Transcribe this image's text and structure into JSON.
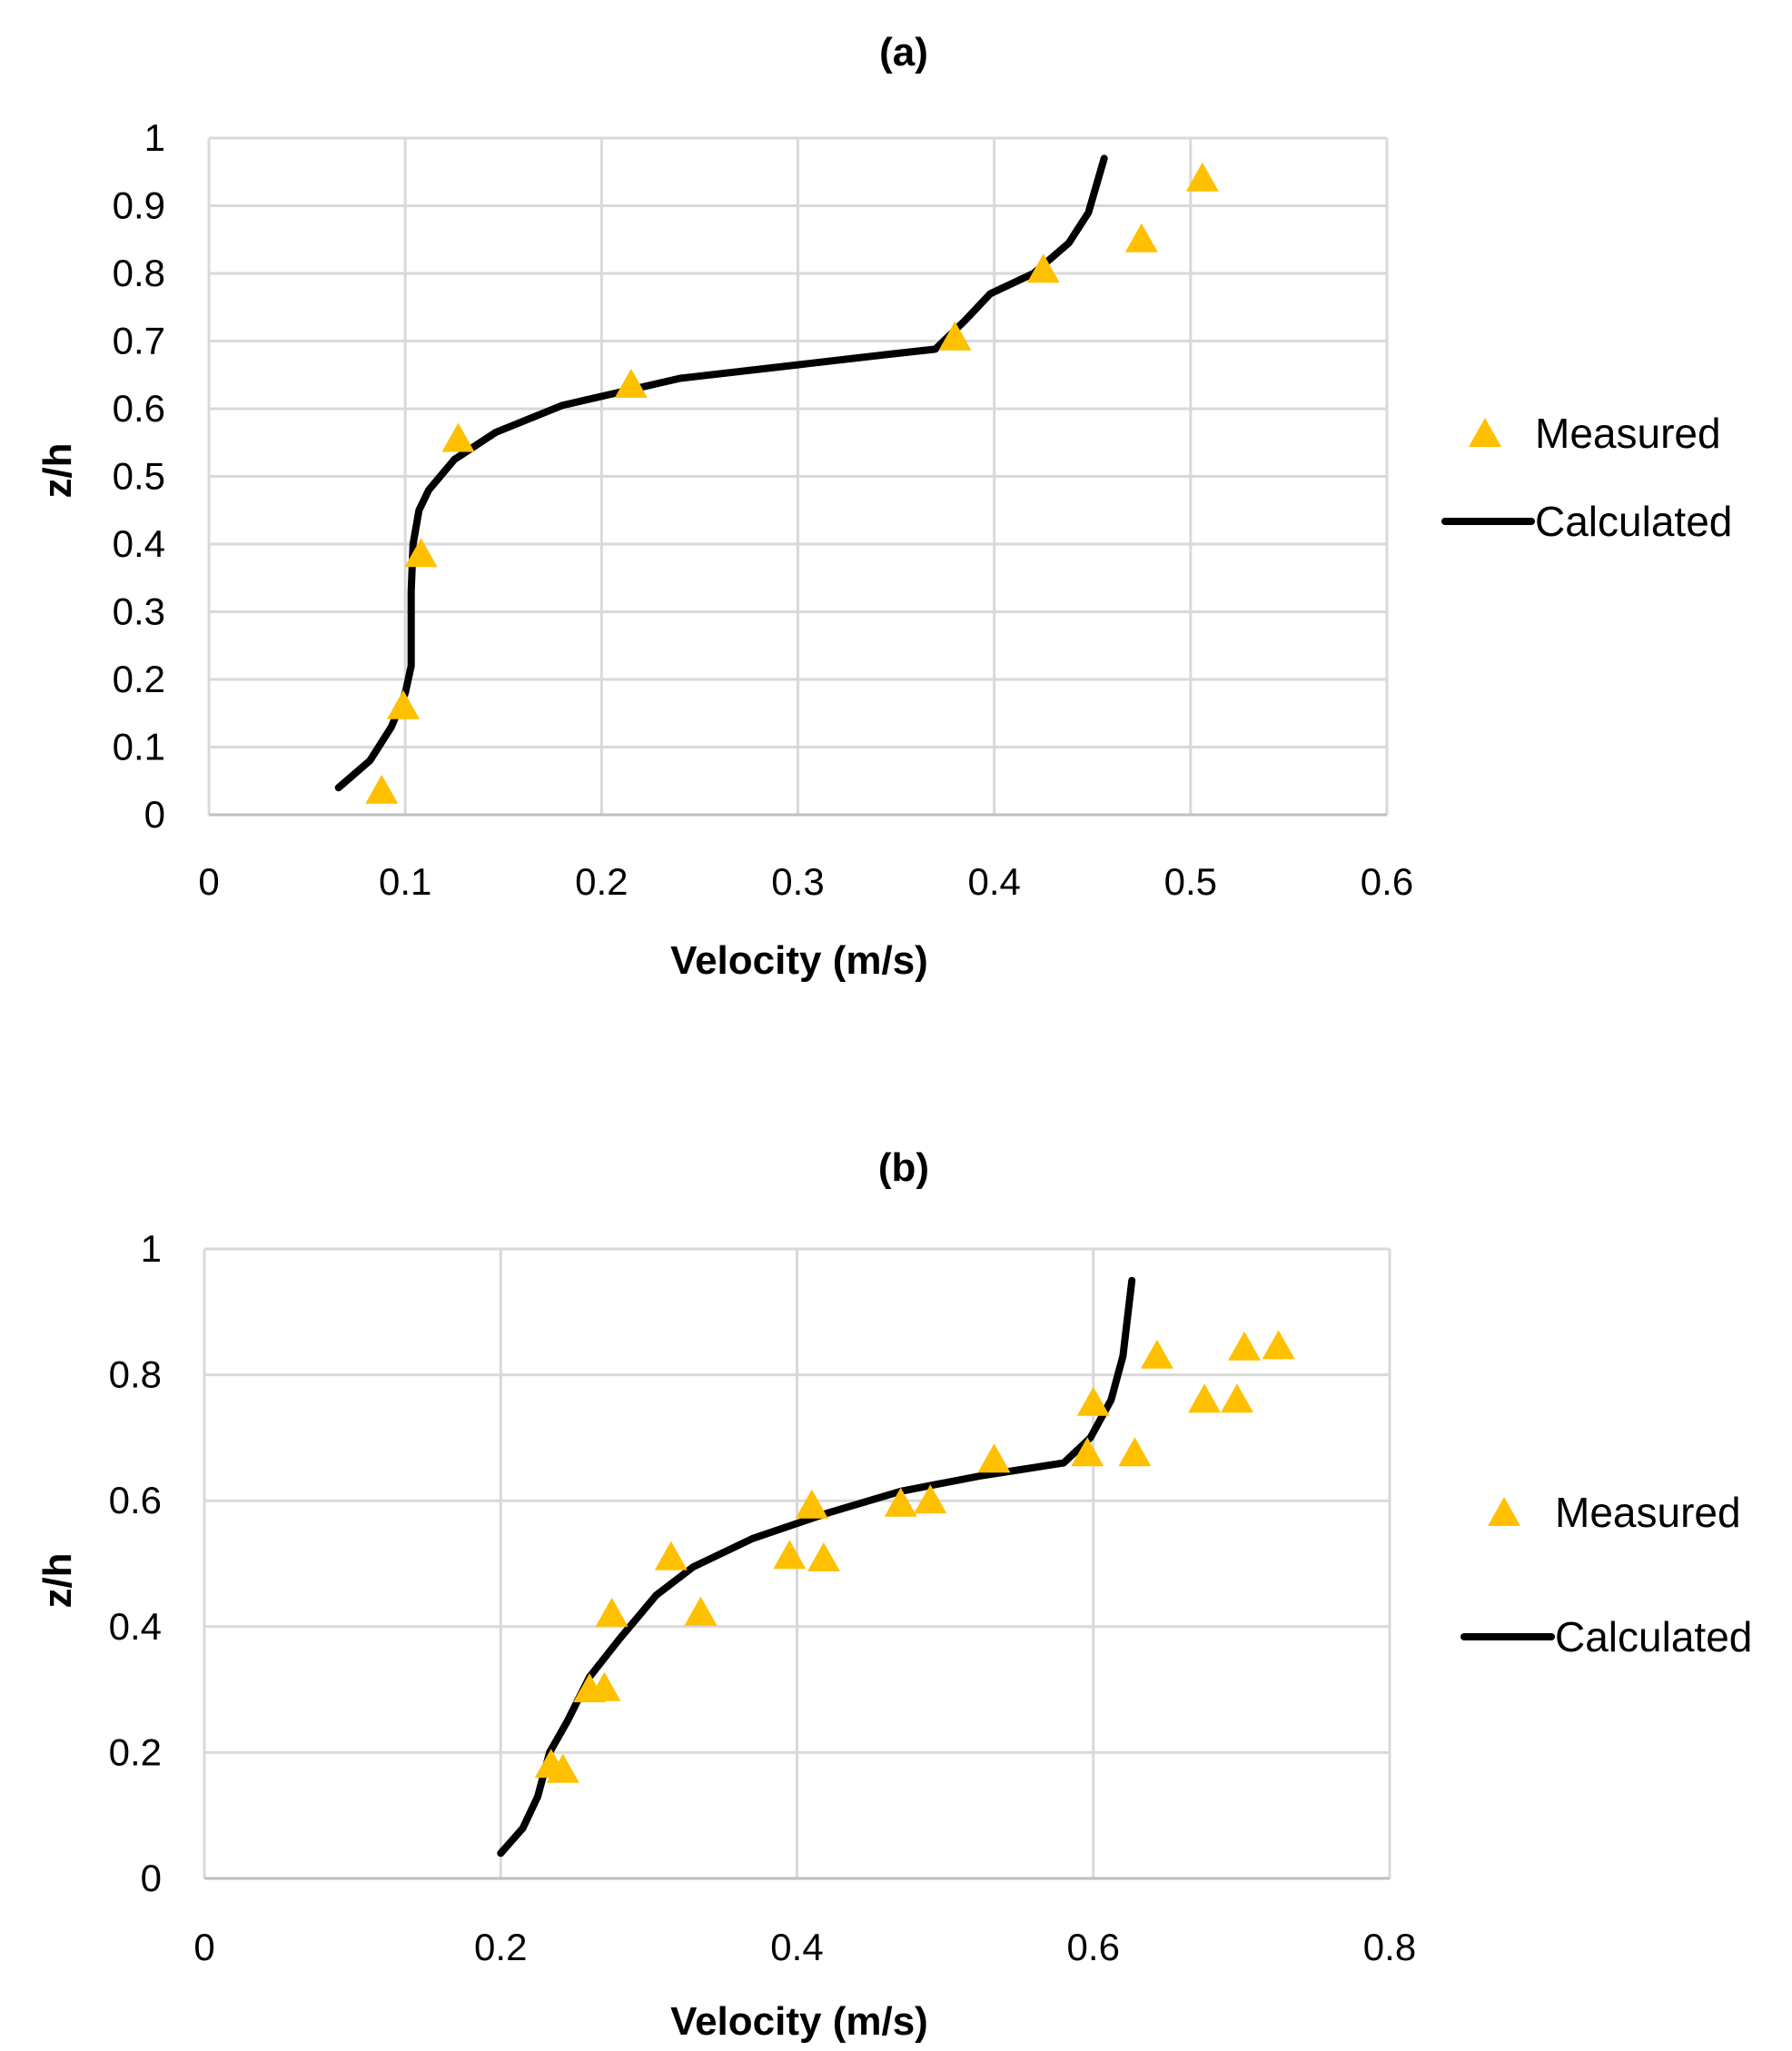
{
  "chart_data": [
    {
      "type": "scatter",
      "title": "(a)",
      "xlabel": "Velocity (m/s)",
      "ylabel": "z/h",
      "xlim": [
        0,
        0.6
      ],
      "ylim": [
        0,
        1
      ],
      "x_ticks": [
        0,
        0.1,
        0.2,
        0.3,
        0.4,
        0.5,
        0.6
      ],
      "x_tick_labels": [
        "0",
        "0.1",
        "0.2",
        "0.3",
        "0.4",
        "0.5",
        "0.6"
      ],
      "y_ticks": [
        0,
        0.1,
        0.2,
        0.3,
        0.4,
        0.5,
        0.6,
        0.7,
        0.8,
        0.9,
        1
      ],
      "y_tick_labels": [
        "0",
        "0.1",
        "0.2",
        "0.3",
        "0.4",
        "0.5",
        "0.6",
        "0.7",
        "0.8",
        "0.9",
        "1"
      ],
      "grid": true,
      "legend_position": "right",
      "series": [
        {
          "name": "Measured",
          "kind": "markers",
          "marker": "triangle",
          "color": "#FFC000",
          "points": [
            [
              0.088,
              0.035
            ],
            [
              0.099,
              0.16
            ],
            [
              0.108,
              0.385
            ],
            [
              0.127,
              0.555
            ],
            [
              0.215,
              0.635
            ],
            [
              0.38,
              0.705
            ],
            [
              0.425,
              0.805
            ],
            [
              0.475,
              0.85
            ],
            [
              0.506,
              0.94
            ]
          ]
        },
        {
          "name": "Calculated",
          "kind": "line",
          "color": "#000000",
          "points": [
            [
              0.066,
              0.04
            ],
            [
              0.082,
              0.08
            ],
            [
              0.093,
              0.13
            ],
            [
              0.1,
              0.18
            ],
            [
              0.103,
              0.22
            ],
            [
              0.103,
              0.26
            ],
            [
              0.103,
              0.33
            ],
            [
              0.104,
              0.4
            ],
            [
              0.107,
              0.45
            ],
            [
              0.112,
              0.48
            ],
            [
              0.125,
              0.525
            ],
            [
              0.146,
              0.565
            ],
            [
              0.18,
              0.605
            ],
            [
              0.21,
              0.625
            ],
            [
              0.24,
              0.645
            ],
            [
              0.3,
              0.665
            ],
            [
              0.345,
              0.68
            ],
            [
              0.37,
              0.688
            ],
            [
              0.385,
              0.73
            ],
            [
              0.398,
              0.77
            ],
            [
              0.42,
              0.8
            ],
            [
              0.438,
              0.845
            ],
            [
              0.448,
              0.89
            ],
            [
              0.456,
              0.97
            ]
          ]
        }
      ]
    },
    {
      "type": "scatter",
      "title": "(b)",
      "xlabel": "Velocity (m/s)",
      "ylabel": "z/h",
      "xlim": [
        0,
        0.8
      ],
      "ylim": [
        0,
        1
      ],
      "x_ticks": [
        0,
        0.2,
        0.4,
        0.6,
        0.8
      ],
      "x_tick_labels": [
        "0",
        "0.2",
        "0.4",
        "0.6",
        "0.8"
      ],
      "y_ticks": [
        0,
        0.2,
        0.4,
        0.6,
        0.8,
        1
      ],
      "y_tick_labels": [
        "0",
        "0.2",
        "0.4",
        "0.6",
        "0.8",
        "1"
      ],
      "grid": true,
      "legend_position": "right",
      "series": [
        {
          "name": "Measured",
          "kind": "markers",
          "marker": "triangle",
          "color": "#FFC000",
          "points": [
            [
              0.234,
              0.18
            ],
            [
              0.242,
              0.172
            ],
            [
              0.26,
              0.3
            ],
            [
              0.27,
              0.302
            ],
            [
              0.275,
              0.42
            ],
            [
              0.315,
              0.51
            ],
            [
              0.335,
              0.422
            ],
            [
              0.395,
              0.512
            ],
            [
              0.41,
              0.592
            ],
            [
              0.418,
              0.508
            ],
            [
              0.47,
              0.595
            ],
            [
              0.49,
              0.6
            ],
            [
              0.533,
              0.665
            ],
            [
              0.596,
              0.675
            ],
            [
              0.6,
              0.755
            ],
            [
              0.628,
              0.675
            ],
            [
              0.643,
              0.83
            ],
            [
              0.675,
              0.76
            ],
            [
              0.697,
              0.76
            ],
            [
              0.702,
              0.843
            ],
            [
              0.725,
              0.845
            ]
          ]
        },
        {
          "name": "Calculated",
          "kind": "line",
          "color": "#000000",
          "points": [
            [
              0.2,
              0.04
            ],
            [
              0.215,
              0.08
            ],
            [
              0.225,
              0.13
            ],
            [
              0.233,
              0.2
            ],
            [
              0.245,
              0.25
            ],
            [
              0.26,
              0.32
            ],
            [
              0.28,
              0.38
            ],
            [
              0.305,
              0.45
            ],
            [
              0.33,
              0.495
            ],
            [
              0.37,
              0.54
            ],
            [
              0.42,
              0.58
            ],
            [
              0.47,
              0.615
            ],
            [
              0.525,
              0.64
            ],
            [
              0.58,
              0.66
            ],
            [
              0.598,
              0.7
            ],
            [
              0.612,
              0.76
            ],
            [
              0.62,
              0.83
            ],
            [
              0.626,
              0.95
            ]
          ]
        }
      ]
    }
  ],
  "legend": {
    "measured": "Measured",
    "calculated": "Calculated"
  }
}
